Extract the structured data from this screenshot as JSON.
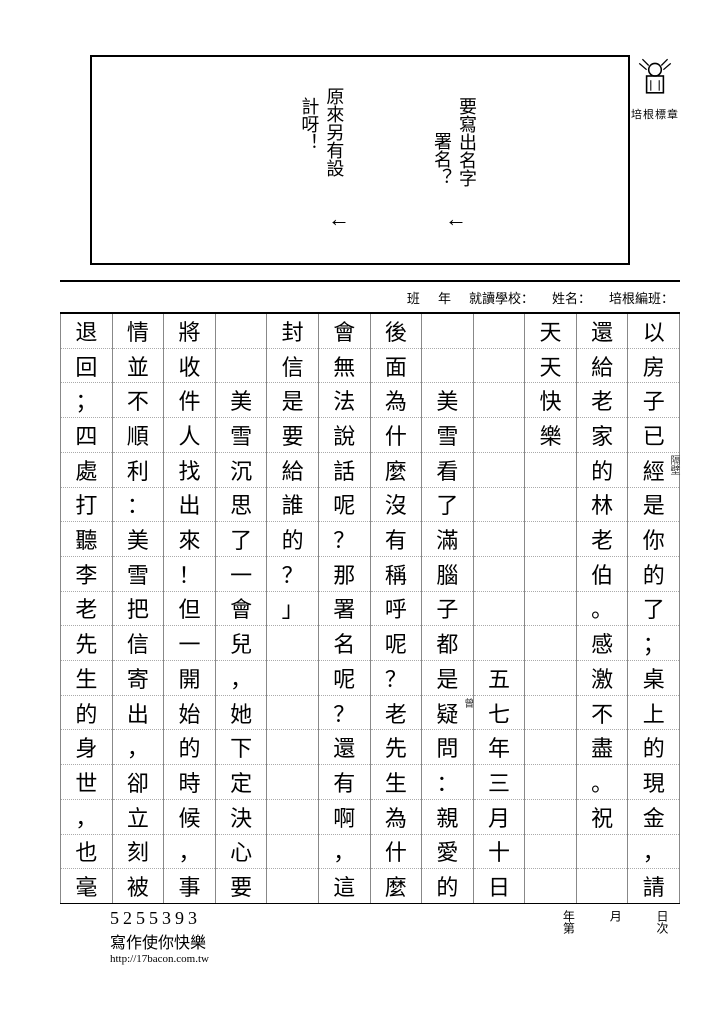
{
  "stamp_label": "培根標章",
  "teacher_notes": {
    "note1": "要寫出名字",
    "note1b": "署名？",
    "note2": "原來另有設",
    "note2b": "計呀！"
  },
  "header": {
    "class_label": "培根編班：",
    "name_label": "姓名：",
    "school_label": "就讀學校：",
    "grade_label": "年",
    "classnum_label": "班"
  },
  "columns": [
    [
      "以",
      "房",
      "子",
      "已",
      "經",
      "是",
      "你",
      "的",
      "了",
      "；",
      "桌",
      "上",
      "的",
      "現",
      "金",
      "，",
      "請"
    ],
    [
      "還",
      "給",
      "老",
      "家",
      "的",
      "林",
      "老",
      "伯",
      "。",
      "感",
      "激",
      "不",
      "盡",
      "。",
      "祝",
      "",
      ""
    ],
    [
      "天",
      "天",
      "快",
      "樂",
      "",
      "",
      "",
      "",
      "",
      "",
      "",
      "",
      "",
      "",
      "",
      "",
      ""
    ],
    [
      "",
      "",
      "",
      "",
      "",
      "",
      "",
      "",
      "",
      "",
      "五",
      "七",
      "年",
      "三",
      "月",
      "十",
      "日"
    ],
    [
      "",
      "",
      "美",
      "雪",
      "看",
      "了",
      "滿",
      "腦",
      "子",
      "都",
      "是",
      "疑",
      "問",
      "：",
      "親",
      "愛",
      "的"
    ],
    [
      "後",
      "面",
      "為",
      "什",
      "麼",
      "沒",
      "有",
      "稱",
      "呼",
      "呢",
      "？",
      "老",
      "先",
      "生",
      "為",
      "什",
      "麼"
    ],
    [
      "會",
      "無",
      "法",
      "說",
      "話",
      "呢",
      "？",
      "那",
      "署",
      "名",
      "呢",
      "？",
      "還",
      "有",
      "啊",
      "，",
      "這"
    ],
    [
      "封",
      "信",
      "是",
      "要",
      "給",
      "誰",
      "的",
      "？",
      "」",
      "",
      "",
      "",
      "",
      "",
      "",
      "",
      ""
    ],
    [
      "",
      "",
      "美",
      "雪",
      "沉",
      "思",
      "了",
      "一",
      "會",
      "兒",
      "，",
      "她",
      "下",
      "定",
      "決",
      "心",
      "要"
    ],
    [
      "將",
      "收",
      "件",
      "人",
      "找",
      "出",
      "來",
      "！",
      "但",
      "一",
      "開",
      "始",
      "的",
      "時",
      "候",
      "，",
      "事"
    ],
    [
      "情",
      "並",
      "不",
      "順",
      "利",
      "：",
      "美",
      "雪",
      "把",
      "信",
      "寄",
      "出",
      "，",
      "卻",
      "立",
      "刻",
      "被"
    ],
    [
      "退",
      "回",
      "；",
      "四",
      "處",
      "打",
      "聽",
      "李",
      "老",
      "先",
      "生",
      "的",
      "身",
      "世",
      "，",
      "也",
      "毫"
    ]
  ],
  "annotations": {
    "col0_row4": "隔壁",
    "col4_row11": "曾"
  },
  "footer": {
    "day_label": "日次",
    "month_label": "月",
    "year_label": "年第",
    "number": "5255393",
    "slogan": "寫作使你快樂",
    "url": "http://17bacon.com.tw"
  }
}
